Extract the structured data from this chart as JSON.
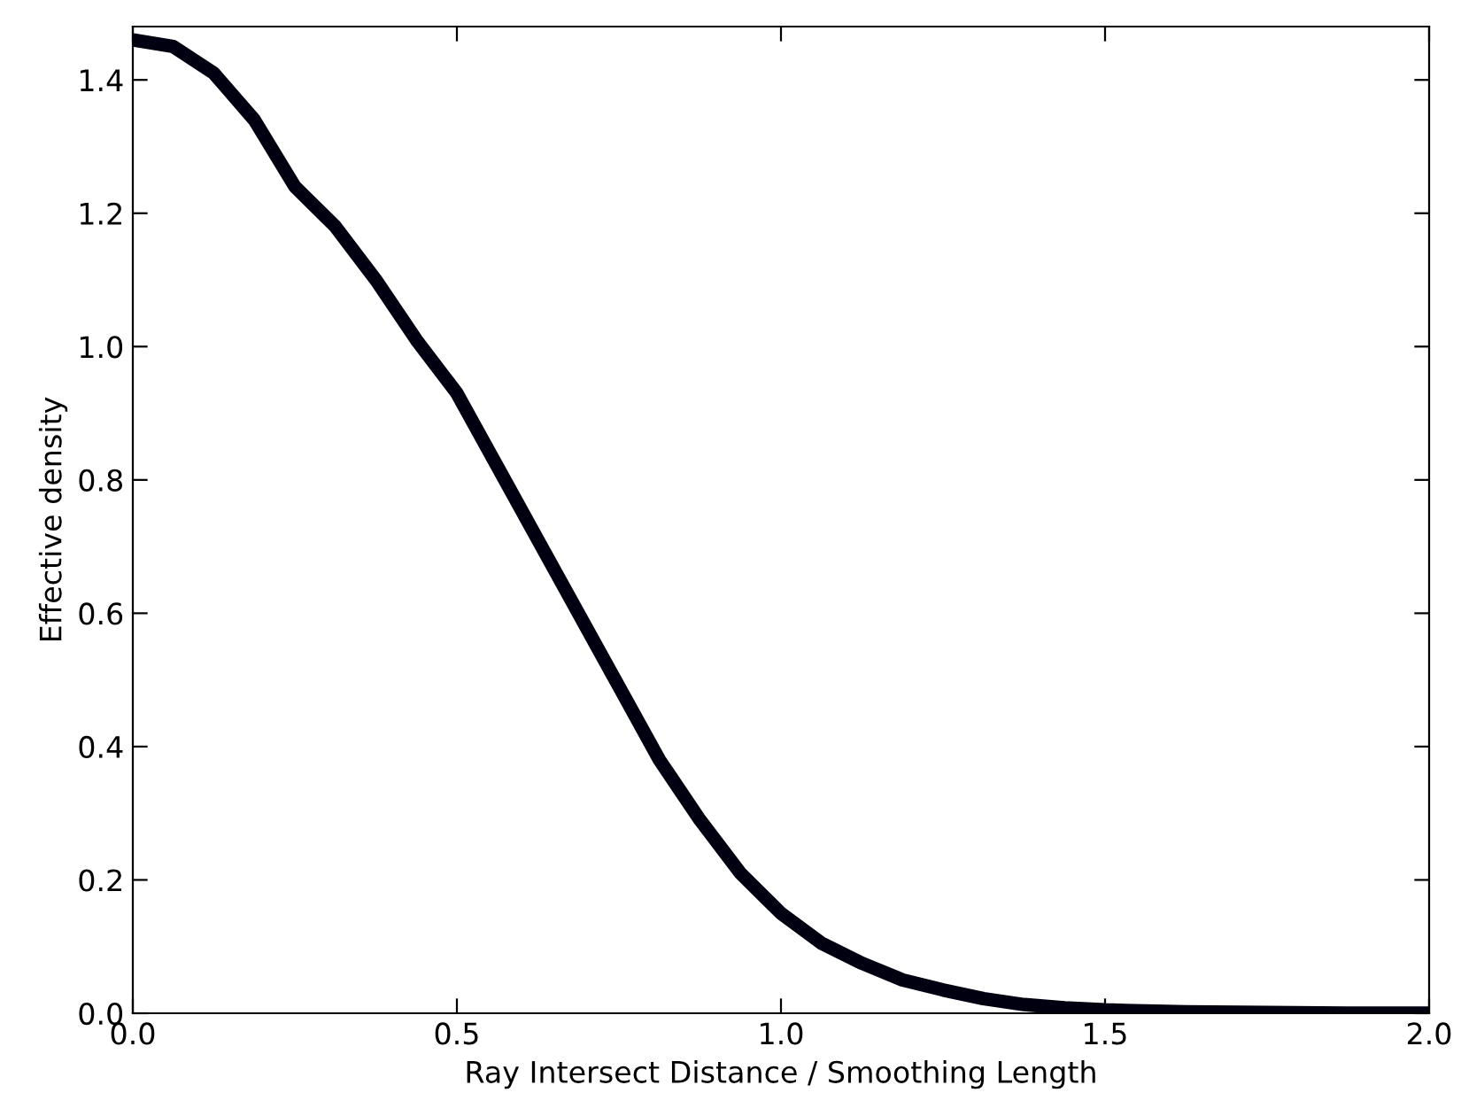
{
  "chart_data": {
    "type": "line",
    "xlabel": "Ray Intersect Distance / Smoothing Length",
    "ylabel": "Effective density",
    "x": [
      0,
      0.0625,
      0.125,
      0.1875,
      0.25,
      0.3125,
      0.375,
      0.4375,
      0.5,
      0.5625,
      0.625,
      0.6875,
      0.75,
      0.8125,
      0.875,
      0.9375,
      1.0,
      1.0625,
      1.125,
      1.1875,
      1.25,
      1.3125,
      1.375,
      1.4375,
      1.5,
      1.625,
      1.75,
      1.875,
      2.0
    ],
    "series": [
      {
        "color": "#000010",
        "values": [
          1.46,
          1.45,
          1.41,
          1.34,
          1.24,
          1.18,
          1.1,
          1.01,
          0.93,
          0.82,
          0.71,
          0.6,
          0.49,
          0.38,
          0.29,
          0.21,
          0.15,
          0.105,
          0.075,
          0.05,
          0.035,
          0.022,
          0.013,
          0.008,
          0.005,
          0.002,
          0.001,
          0.0,
          0.0
        ]
      }
    ],
    "xlim": [
      0,
      2.0
    ],
    "ylim": [
      0,
      1.48
    ],
    "xticks": [
      {
        "value": 0,
        "label": "0.0"
      },
      0.5,
      {
        "value": 1,
        "label": "1.0"
      },
      1.5,
      {
        "value": 2,
        "label": "2.0"
      }
    ],
    "yticks": [
      {
        "value": 0,
        "label": "0.0"
      },
      0.2,
      0.4,
      0.6,
      0.8,
      {
        "value": 1,
        "label": "1.0"
      },
      1.2,
      1.4
    ],
    "grid": false,
    "marker": "none",
    "line_style": "solid"
  }
}
